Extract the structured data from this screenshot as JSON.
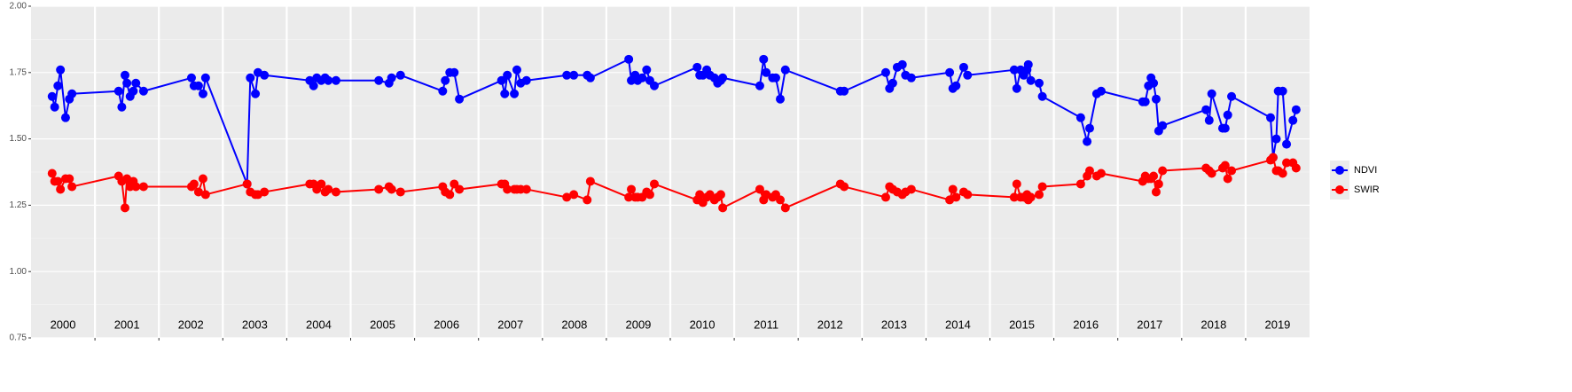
{
  "chart_data": {
    "type": "line",
    "x": [
      2000.33,
      2000.37,
      2000.42,
      2000.46,
      2000.54,
      2000.6,
      2000.64,
      2001.37,
      2001.42,
      2001.47,
      2001.5,
      2001.55,
      2001.6,
      2001.64,
      2001.76,
      2002.51,
      2002.55,
      2002.62,
      2002.69,
      2002.73,
      2003.38,
      2003.43,
      2003.51,
      2003.55,
      2003.65,
      2004.36,
      2004.42,
      2004.47,
      2004.54,
      2004.6,
      2004.65,
      2004.77,
      2005.44,
      2005.6,
      2005.64,
      2005.78,
      2006.44,
      2006.48,
      2006.55,
      2006.62,
      2006.7,
      2007.36,
      2007.41,
      2007.45,
      2007.56,
      2007.6,
      2007.66,
      2007.75,
      2008.38,
      2008.49,
      2008.7,
      2008.75,
      2009.35,
      2009.39,
      2009.45,
      2009.49,
      2009.56,
      2009.63,
      2009.68,
      2009.75,
      2010.42,
      2010.46,
      2010.51,
      2010.57,
      2010.62,
      2010.69,
      2010.74,
      2010.79,
      2010.82,
      2011.4,
      2011.46,
      2011.5,
      2011.6,
      2011.65,
      2011.72,
      2011.8,
      2012.66,
      2012.72,
      2013.37,
      2013.43,
      2013.48,
      2013.55,
      2013.63,
      2013.68,
      2013.77,
      2014.37,
      2014.42,
      2014.47,
      2014.59,
      2014.65,
      2015.38,
      2015.42,
      2015.48,
      2015.53,
      2015.58,
      2015.6,
      2015.64,
      2015.77,
      2015.82,
      2016.42,
      2016.52,
      2016.56,
      2016.67,
      2016.74,
      2017.39,
      2017.43,
      2017.48,
      2017.52,
      2017.56,
      2017.6,
      2017.64,
      2017.7,
      2018.38,
      2018.43,
      2018.47,
      2018.64,
      2018.68,
      2018.72,
      2018.78,
      2019.39,
      2019.43,
      2019.48,
      2019.51,
      2019.58,
      2019.64,
      2019.74,
      2019.79
    ],
    "series": [
      {
        "name": "NDVI",
        "color": "#0000ff",
        "values": [
          1.66,
          1.62,
          1.7,
          1.76,
          1.58,
          1.65,
          1.67,
          1.68,
          1.62,
          1.74,
          1.71,
          1.66,
          1.68,
          1.71,
          1.68,
          1.73,
          1.7,
          1.7,
          1.67,
          1.73,
          1.33,
          1.73,
          1.67,
          1.75,
          1.74,
          1.72,
          1.7,
          1.73,
          1.72,
          1.73,
          1.72,
          1.72,
          1.72,
          1.71,
          1.73,
          1.74,
          1.68,
          1.72,
          1.75,
          1.75,
          1.65,
          1.72,
          1.67,
          1.74,
          1.67,
          1.76,
          1.71,
          1.72,
          1.74,
          1.74,
          1.74,
          1.73,
          1.8,
          1.72,
          1.74,
          1.72,
          1.73,
          1.76,
          1.72,
          1.7,
          1.77,
          1.74,
          1.74,
          1.76,
          1.74,
          1.73,
          1.71,
          1.72,
          1.73,
          1.7,
          1.8,
          1.75,
          1.73,
          1.73,
          1.65,
          1.76,
          1.68,
          1.68,
          1.75,
          1.69,
          1.71,
          1.77,
          1.78,
          1.74,
          1.73,
          1.75,
          1.69,
          1.7,
          1.77,
          1.74,
          1.76,
          1.69,
          1.76,
          1.74,
          1.76,
          1.78,
          1.72,
          1.71,
          1.66,
          1.58,
          1.49,
          1.54,
          1.67,
          1.68,
          1.64,
          1.64,
          1.7,
          1.73,
          1.71,
          1.65,
          1.53,
          1.55,
          1.61,
          1.57,
          1.67,
          1.54,
          1.54,
          1.59,
          1.66,
          1.58,
          1.43,
          1.5,
          1.68,
          1.68,
          1.48,
          1.57,
          1.61
        ]
      },
      {
        "name": "SWIR",
        "color": "#ff0000",
        "values": [
          1.37,
          1.34,
          1.34,
          1.31,
          1.35,
          1.35,
          1.32,
          1.36,
          1.34,
          1.24,
          1.35,
          1.32,
          1.34,
          1.32,
          1.32,
          1.32,
          1.33,
          1.3,
          1.35,
          1.29,
          1.33,
          1.3,
          1.29,
          1.29,
          1.3,
          1.33,
          1.33,
          1.31,
          1.33,
          1.3,
          1.31,
          1.3,
          1.31,
          1.32,
          1.31,
          1.3,
          1.32,
          1.3,
          1.29,
          1.33,
          1.31,
          1.33,
          1.33,
          1.31,
          1.31,
          1.31,
          1.31,
          1.31,
          1.28,
          1.29,
          1.27,
          1.34,
          1.28,
          1.31,
          1.28,
          1.28,
          1.28,
          1.3,
          1.29,
          1.33,
          1.27,
          1.29,
          1.26,
          1.28,
          1.29,
          1.27,
          1.28,
          1.29,
          1.24,
          1.31,
          1.27,
          1.29,
          1.28,
          1.29,
          1.27,
          1.24,
          1.33,
          1.32,
          1.28,
          1.32,
          1.31,
          1.3,
          1.29,
          1.3,
          1.31,
          1.27,
          1.31,
          1.28,
          1.3,
          1.29,
          1.28,
          1.33,
          1.28,
          1.28,
          1.29,
          1.27,
          1.28,
          1.29,
          1.32,
          1.33,
          1.36,
          1.38,
          1.36,
          1.37,
          1.34,
          1.36,
          1.35,
          1.35,
          1.36,
          1.3,
          1.33,
          1.38,
          1.39,
          1.38,
          1.37,
          1.39,
          1.4,
          1.35,
          1.38,
          1.42,
          1.43,
          1.38,
          1.38,
          1.37,
          1.41,
          1.41,
          1.39
        ]
      }
    ],
    "xlim": [
      2000,
      2020
    ],
    "xticks": [
      {
        "value": 2000.5,
        "label": "2000"
      },
      {
        "value": 2001.5,
        "label": "2001"
      },
      {
        "value": 2002.5,
        "label": "2002"
      },
      {
        "value": 2003.5,
        "label": "2003"
      },
      {
        "value": 2004.5,
        "label": "2004"
      },
      {
        "value": 2005.5,
        "label": "2005"
      },
      {
        "value": 2006.5,
        "label": "2006"
      },
      {
        "value": 2007.5,
        "label": "2007"
      },
      {
        "value": 2008.5,
        "label": "2008"
      },
      {
        "value": 2009.5,
        "label": "2009"
      },
      {
        "value": 2010.5,
        "label": "2010"
      },
      {
        "value": 2011.5,
        "label": "2011"
      },
      {
        "value": 2012.5,
        "label": "2012"
      },
      {
        "value": 2013.5,
        "label": "2013"
      },
      {
        "value": 2014.5,
        "label": "2014"
      },
      {
        "value": 2015.5,
        "label": "2015"
      },
      {
        "value": 2016.5,
        "label": "2016"
      },
      {
        "value": 2017.5,
        "label": "2017"
      },
      {
        "value": 2018.5,
        "label": "2018"
      },
      {
        "value": 2019.5,
        "label": "2019"
      }
    ],
    "xgrid": [
      2001,
      2002,
      2003,
      2004,
      2005,
      2006,
      2007,
      2008,
      2009,
      2010,
      2011,
      2012,
      2013,
      2014,
      2015,
      2016,
      2017,
      2018,
      2019
    ],
    "ylim": [
      0.75,
      2.0
    ],
    "yticks": [
      0.75,
      {
        "value": 1.0,
        "label": "1.00"
      },
      1.25,
      {
        "value": 1.5,
        "label": "1.50"
      },
      1.75,
      {
        "value": 2.0,
        "label": "2.00"
      }
    ],
    "yminor": [
      0.875,
      1.125,
      1.375,
      1.625,
      1.875
    ],
    "grid": true,
    "legend": "right"
  }
}
